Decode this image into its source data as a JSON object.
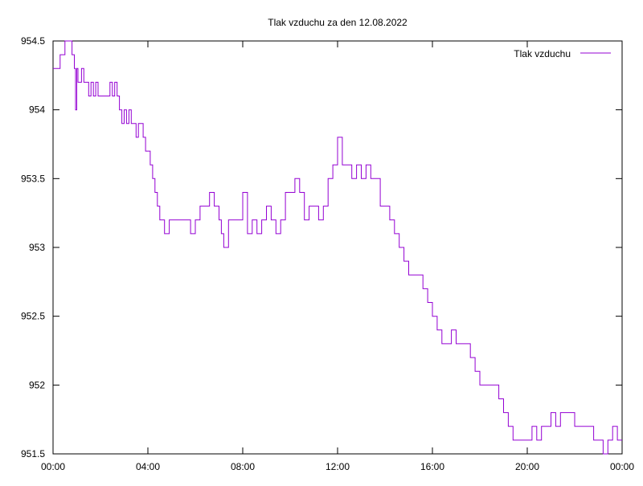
{
  "chart_data": {
    "type": "line",
    "title": "Tlak vzduchu za den 12.08.2022",
    "xlabel": "",
    "ylabel": "",
    "xlim": [
      0,
      24
    ],
    "ylim": [
      951.5,
      954.5
    ],
    "x_ticks": [
      "00:00",
      "04:00",
      "08:00",
      "12:00",
      "16:00",
      "20:00",
      "00:00"
    ],
    "y_ticks": [
      "951.5",
      "952",
      "952.5",
      "953",
      "953.5",
      "954",
      "954.5"
    ],
    "grid": false,
    "legend_position": "top-right",
    "colors": {
      "series": "#9400d3",
      "axes": "#000000",
      "background": "#ffffff"
    },
    "series": [
      {
        "name": "Tlak vzduchu",
        "x": [
          0.0,
          0.2,
          0.3,
          0.4,
          0.5,
          0.6,
          0.7,
          0.8,
          0.9,
          0.95,
          1.0,
          1.05,
          1.1,
          1.2,
          1.3,
          1.4,
          1.5,
          1.6,
          1.7,
          1.8,
          1.9,
          2.0,
          2.1,
          2.2,
          2.3,
          2.4,
          2.5,
          2.6,
          2.7,
          2.8,
          2.9,
          3.0,
          3.1,
          3.2,
          3.3,
          3.4,
          3.5,
          3.6,
          3.7,
          3.8,
          3.9,
          4.0,
          4.1,
          4.2,
          4.3,
          4.4,
          4.5,
          4.6,
          4.7,
          4.8,
          4.9,
          5.0,
          5.2,
          5.4,
          5.6,
          5.8,
          6.0,
          6.2,
          6.4,
          6.6,
          6.8,
          7.0,
          7.1,
          7.2,
          7.4,
          7.6,
          7.8,
          8.0,
          8.2,
          8.4,
          8.6,
          8.8,
          9.0,
          9.2,
          9.4,
          9.6,
          9.8,
          10.0,
          10.2,
          10.4,
          10.6,
          10.8,
          11.0,
          11.2,
          11.4,
          11.6,
          11.8,
          12.0,
          12.2,
          12.4,
          12.6,
          12.8,
          13.0,
          13.2,
          13.4,
          13.5,
          13.6,
          13.8,
          14.0,
          14.2,
          14.4,
          14.6,
          14.8,
          15.0,
          15.2,
          15.4,
          15.6,
          15.8,
          16.0,
          16.2,
          16.4,
          16.6,
          16.8,
          17.0,
          17.2,
          17.4,
          17.6,
          17.8,
          18.0,
          18.2,
          18.4,
          18.6,
          18.8,
          19.0,
          19.2,
          19.4,
          19.6,
          19.8,
          20.0,
          20.2,
          20.4,
          20.6,
          20.8,
          21.0,
          21.2,
          21.4,
          21.6,
          21.8,
          22.0,
          22.2,
          22.4,
          22.6,
          22.8,
          23.0,
          23.2,
          23.4,
          23.6,
          23.8,
          24.0
        ],
        "y": [
          954.3,
          954.3,
          954.4,
          954.4,
          954.5,
          954.5,
          954.5,
          954.4,
          954.3,
          954.0,
          954.3,
          954.2,
          954.2,
          954.3,
          954.2,
          954.2,
          954.1,
          954.2,
          954.1,
          954.2,
          954.1,
          954.1,
          954.1,
          954.1,
          954.1,
          954.2,
          954.1,
          954.2,
          954.1,
          954.0,
          953.9,
          954.0,
          953.9,
          954.0,
          953.9,
          953.9,
          953.8,
          953.9,
          953.9,
          953.8,
          953.7,
          953.7,
          953.6,
          953.5,
          953.4,
          953.3,
          953.2,
          953.2,
          953.1,
          953.1,
          953.2,
          953.2,
          953.2,
          953.2,
          953.2,
          953.1,
          953.2,
          953.3,
          953.3,
          953.4,
          953.3,
          953.2,
          953.1,
          953.0,
          953.2,
          953.2,
          953.2,
          953.4,
          953.1,
          953.2,
          953.1,
          953.2,
          953.3,
          953.2,
          953.1,
          953.2,
          953.4,
          953.4,
          953.5,
          953.4,
          953.2,
          953.3,
          953.3,
          953.2,
          953.3,
          953.5,
          953.6,
          953.8,
          953.6,
          953.6,
          953.5,
          953.6,
          953.5,
          953.6,
          953.5,
          953.5,
          953.5,
          953.3,
          953.3,
          953.2,
          953.1,
          953.0,
          952.9,
          952.8,
          952.8,
          952.8,
          952.7,
          952.6,
          952.5,
          952.4,
          952.3,
          952.3,
          952.4,
          952.3,
          952.3,
          952.3,
          952.2,
          952.1,
          952.0,
          952.0,
          952.0,
          952.0,
          951.9,
          951.8,
          951.7,
          951.6,
          951.6,
          951.6,
          951.6,
          951.7,
          951.6,
          951.7,
          951.7,
          951.8,
          951.7,
          951.8,
          951.8,
          951.8,
          951.7,
          951.7,
          951.7,
          951.7,
          951.6,
          951.6,
          951.5,
          951.6,
          951.7,
          951.6,
          951.6
        ]
      }
    ]
  }
}
